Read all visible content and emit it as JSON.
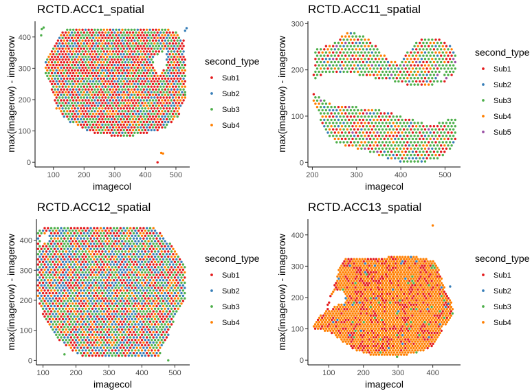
{
  "palette": {
    "Sub1": "#E41A1C",
    "Sub2": "#377EB8",
    "Sub3": "#4DAF4A",
    "Sub4": "#FF7F00",
    "Sub5": "#984EA3"
  },
  "chart_data": [
    {
      "type": "scatter",
      "title": "RCTD.ACC1_spatial",
      "xlabel": "imagecol",
      "ylabel": "max(imagerow) - imagerow",
      "xlim": [
        40,
        545
      ],
      "ylim": [
        -15,
        450
      ],
      "xticks": [
        100,
        200,
        300,
        400,
        500
      ],
      "yticks": [
        0,
        100,
        200,
        300,
        400
      ],
      "legend_title": "second_type",
      "legend_position": "right",
      "series": [
        {
          "name": "Sub1",
          "share": 0.45
        },
        {
          "name": "Sub2",
          "share": 0.15
        },
        {
          "name": "Sub3",
          "share": 0.27
        },
        {
          "name": "Sub4",
          "share": 0.13
        }
      ],
      "points": [
        [
          452,
          30,
          3
        ],
        [
          458,
          28,
          3
        ],
        [
          440,
          0,
          0
        ],
        [
          530,
          420,
          1
        ],
        [
          535,
          428,
          1
        ],
        [
          530,
          215,
          2
        ],
        [
          62,
          425,
          2
        ],
        [
          68,
          430,
          2
        ],
        [
          60,
          405,
          2
        ]
      ]
    },
    {
      "type": "scatter",
      "title": "RCTD.ACC11_spatial",
      "xlabel": "imagecol",
      "ylabel": "max(imagerow) - imagerow",
      "xlim": [
        190,
        535
      ],
      "ylim": [
        -10,
        305
      ],
      "xticks": [
        200,
        300,
        400,
        500
      ],
      "yticks": [
        0,
        100,
        200,
        300
      ],
      "legend_title": "second_type",
      "legend_position": "right",
      "series": [
        {
          "name": "Sub1",
          "share": 0.2
        },
        {
          "name": "Sub2",
          "share": 0.08
        },
        {
          "name": "Sub3",
          "share": 0.55
        },
        {
          "name": "Sub4",
          "share": 0.14
        },
        {
          "name": "Sub5",
          "share": 0.03
        }
      ],
      "points": []
    },
    {
      "type": "scatter",
      "title": "RCTD.ACC12_spatial",
      "xlabel": "imagecol",
      "ylabel": "max(imagerow) - imagerow",
      "xlim": [
        80,
        545
      ],
      "ylim": [
        -15,
        470
      ],
      "xticks": [
        100,
        200,
        300,
        400,
        500
      ],
      "yticks": [
        0,
        100,
        200,
        300,
        400
      ],
      "legend_title": "second_type",
      "legend_position": "right",
      "series": [
        {
          "name": "Sub1",
          "share": 0.3
        },
        {
          "name": "Sub2",
          "share": 0.27
        },
        {
          "name": "Sub3",
          "share": 0.28
        },
        {
          "name": "Sub4",
          "share": 0.15
        }
      ],
      "points": [
        [
          165,
          20,
          2
        ],
        [
          480,
          0,
          2
        ]
      ]
    },
    {
      "type": "scatter",
      "title": "RCTD.ACC13_spatial",
      "xlabel": "imagecol",
      "ylabel": "max(imagerow) - imagerow",
      "xlim": [
        40,
        480
      ],
      "ylim": [
        -15,
        450
      ],
      "xticks": [
        100,
        200,
        300,
        400
      ],
      "yticks": [
        0,
        100,
        200,
        300,
        400
      ],
      "legend_title": "second_type",
      "legend_position": "right",
      "series": [
        {
          "name": "Sub1",
          "share": 0.22
        },
        {
          "name": "Sub2",
          "share": 0.02
        },
        {
          "name": "Sub3",
          "share": 0.03
        },
        {
          "name": "Sub4",
          "share": 0.73
        }
      ],
      "points": [
        [
          400,
          430,
          3
        ],
        [
          450,
          235,
          1
        ],
        [
          445,
          180,
          1
        ]
      ]
    }
  ]
}
